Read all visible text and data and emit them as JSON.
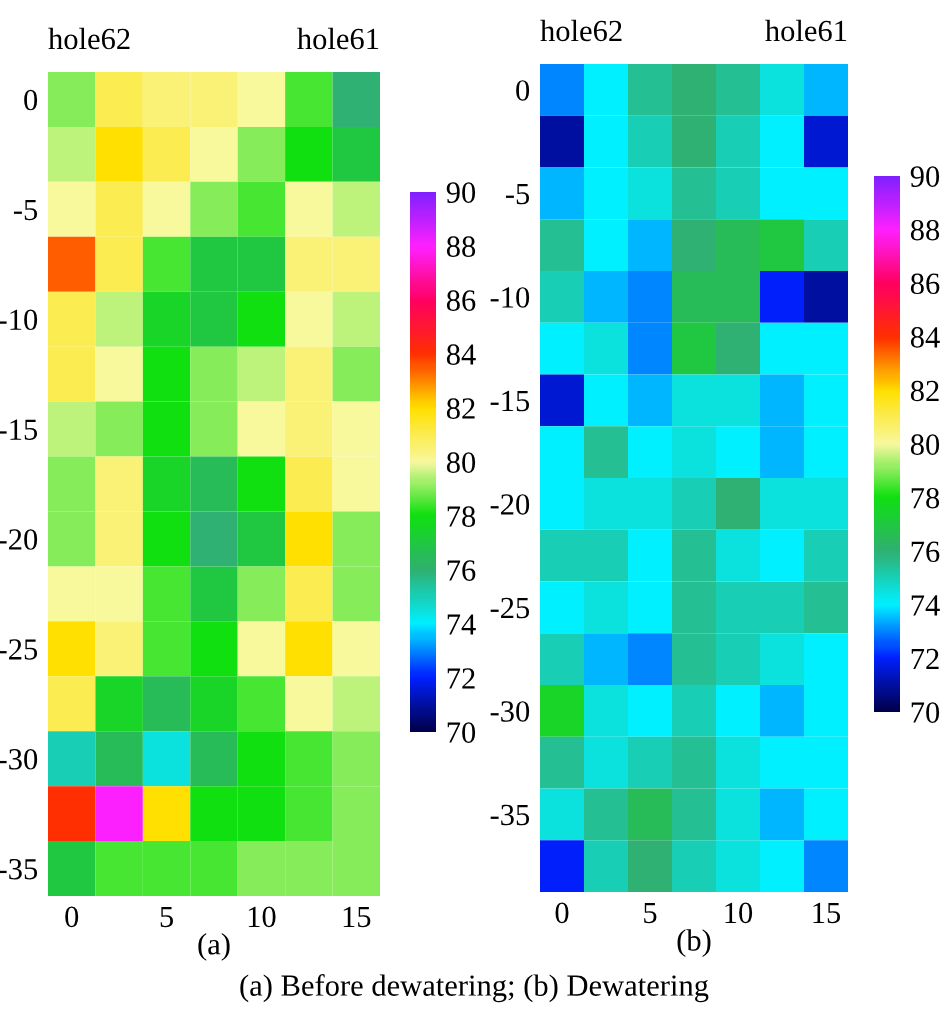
{
  "chart_data": [
    {
      "type": "heatmap",
      "title": "(a)",
      "annotations": [
        "hole62",
        "hole61",
        "(a) Before dewatering; (b) Dewatering"
      ],
      "categories": [
        "0",
        null,
        "5",
        null,
        "10",
        null,
        "15"
      ],
      "y_categories": [
        "0",
        null,
        "-5",
        null,
        "-10",
        null,
        "-15",
        null,
        "-20",
        null,
        "-25",
        null,
        "-30",
        null,
        "-35"
      ],
      "clim": [
        70,
        90
      ],
      "cticks": [
        70,
        72,
        74,
        76,
        78,
        80,
        82,
        84,
        86,
        88,
        90
      ],
      "cells": [
        [
          79,
          81,
          80.5,
          80.5,
          80,
          78.5,
          76
        ],
        [
          79.5,
          82,
          81,
          80,
          79,
          78,
          77
        ],
        [
          80,
          81,
          80,
          79,
          78.5,
          80,
          79.5
        ],
        [
          83.5,
          81,
          78.5,
          77,
          77,
          80.5,
          80.5
        ],
        [
          81,
          79.5,
          77.5,
          77,
          78,
          80,
          79.5
        ],
        [
          81,
          80,
          78,
          79,
          79.5,
          80.5,
          79
        ],
        [
          79.5,
          79,
          78,
          79,
          80,
          80.5,
          80
        ],
        [
          79,
          80.5,
          77.5,
          76.5,
          78,
          81,
          80
        ],
        [
          79,
          80.5,
          78,
          76,
          77,
          82,
          79
        ],
        [
          80,
          80,
          78.5,
          77,
          79,
          81,
          79
        ],
        [
          82,
          80.5,
          78.5,
          78,
          80,
          82,
          80
        ],
        [
          81,
          77.5,
          76.5,
          77.5,
          78.5,
          80,
          79.5
        ],
        [
          75,
          76.5,
          74.5,
          76.5,
          78,
          78.5,
          79
        ],
        [
          84,
          88,
          82,
          78,
          78,
          78.5,
          79
        ],
        [
          77,
          78.5,
          78.5,
          78.5,
          79,
          79,
          79
        ]
      ]
    },
    {
      "type": "heatmap",
      "title": "(b)",
      "annotations": [
        "hole62",
        "hole61"
      ],
      "categories": [
        "0",
        null,
        "5",
        null,
        "10",
        null,
        "15"
      ],
      "y_categories": [
        "0",
        null,
        "-5",
        null,
        "-10",
        null,
        "-15",
        null,
        "-20",
        null,
        "-25",
        null,
        "-30",
        null,
        "-35",
        null
      ],
      "clim": [
        70,
        90
      ],
      "cticks": [
        70,
        72,
        74,
        76,
        78,
        80,
        82,
        84,
        86,
        88,
        90
      ],
      "cells": [
        [
          73,
          74,
          75.5,
          76,
          75.5,
          74.5,
          73.5
        ],
        [
          71,
          74,
          75,
          76,
          75,
          74,
          71.5
        ],
        [
          73.5,
          74,
          74.5,
          75.5,
          75,
          74,
          74
        ],
        [
          75.5,
          74,
          73.5,
          76,
          76.5,
          77,
          75
        ],
        [
          75,
          73.5,
          73,
          76.5,
          76.5,
          72,
          71
        ],
        [
          74,
          74.5,
          73,
          77,
          76,
          74,
          74
        ],
        [
          71.5,
          74,
          73.5,
          74.5,
          74.5,
          73.5,
          74
        ],
        [
          74,
          75.5,
          74,
          74.5,
          74,
          73.5,
          74
        ],
        [
          74,
          74.5,
          74.5,
          75,
          76,
          74.5,
          74.5
        ],
        [
          75,
          75,
          74,
          75.5,
          74.5,
          74,
          75
        ],
        [
          74,
          74.5,
          74,
          75.5,
          75,
          75,
          75.5
        ],
        [
          75,
          73.5,
          73,
          75.5,
          75,
          74.5,
          74
        ],
        [
          77.5,
          74.5,
          74,
          75,
          74,
          73.5,
          74
        ],
        [
          75.5,
          74.5,
          75,
          75.5,
          74.5,
          74,
          74
        ],
        [
          74.5,
          75.5,
          76.5,
          75.5,
          74.5,
          73.5,
          74
        ],
        [
          72,
          75,
          76,
          75,
          74.5,
          74,
          73
        ]
      ]
    }
  ]
}
